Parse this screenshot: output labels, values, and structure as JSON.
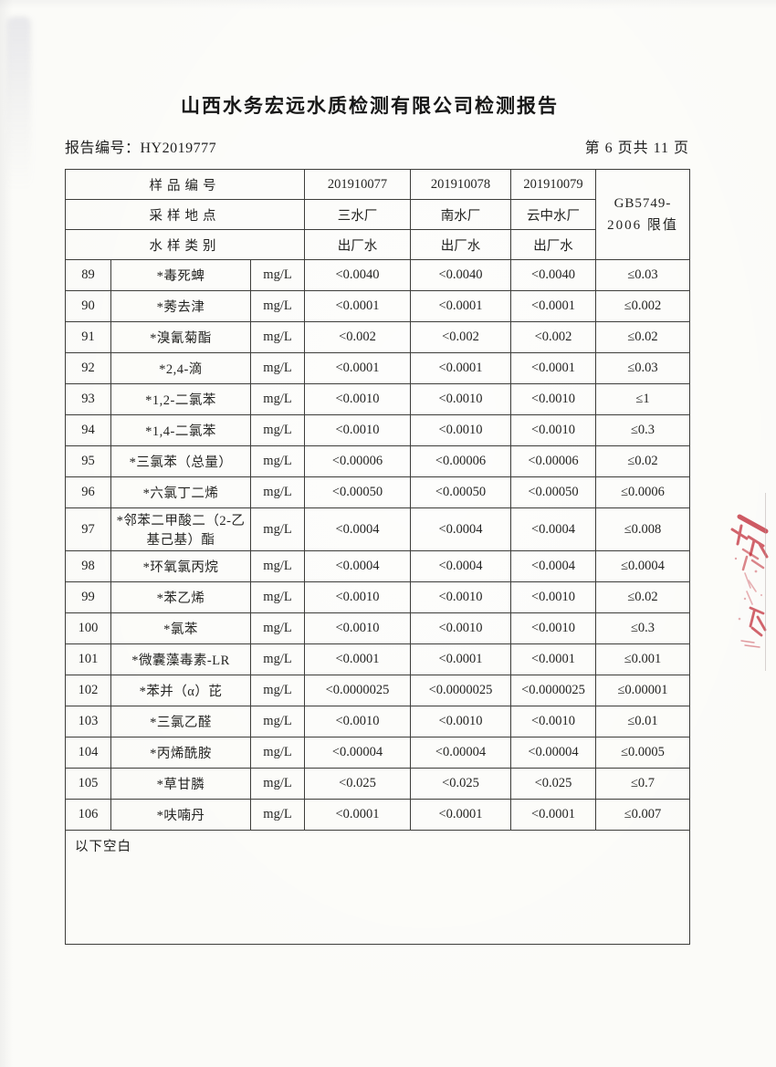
{
  "page": {
    "title": "山西水务宏远水质检测有限公司检测报告",
    "report_no": "报告编号：HY2019777",
    "page_indicator": "第 6 页共 11 页"
  },
  "table": {
    "header": {
      "sample_id_label": "样品编号",
      "sample_ids": [
        "201910077",
        "201910078",
        "201910079"
      ],
      "location_label": "采样地点",
      "locations": [
        "三水厂",
        "南水厂",
        "云中水厂"
      ],
      "category_label": "水样类别",
      "categories": [
        "出厂水",
        "出厂水",
        "出厂水"
      ],
      "limit_line1": "GB5749-",
      "limit_line2": "2006 限值"
    },
    "rows": [
      {
        "no": "89",
        "name": "*毒死蜱",
        "unit": "mg/L",
        "values": [
          "<0.0040",
          "<0.0040",
          "<0.0040"
        ],
        "limit": "≤0.03"
      },
      {
        "no": "90",
        "name": "*莠去津",
        "unit": "mg/L",
        "values": [
          "<0.0001",
          "<0.0001",
          "<0.0001"
        ],
        "limit": "≤0.002"
      },
      {
        "no": "91",
        "name": "*溴氰菊酯",
        "unit": "mg/L",
        "values": [
          "<0.002",
          "<0.002",
          "<0.002"
        ],
        "limit": "≤0.02"
      },
      {
        "no": "92",
        "name": "*2,4-滴",
        "unit": "mg/L",
        "values": [
          "<0.0001",
          "<0.0001",
          "<0.0001"
        ],
        "limit": "≤0.03"
      },
      {
        "no": "93",
        "name": "*1,2-二氯苯",
        "unit": "mg/L",
        "values": [
          "<0.0010",
          "<0.0010",
          "<0.0010"
        ],
        "limit": "≤1"
      },
      {
        "no": "94",
        "name": "*1,4-二氯苯",
        "unit": "mg/L",
        "values": [
          "<0.0010",
          "<0.0010",
          "<0.0010"
        ],
        "limit": "≤0.3"
      },
      {
        "no": "95",
        "name": "*三氯苯（总量）",
        "unit": "mg/L",
        "values": [
          "<0.00006",
          "<0.00006",
          "<0.00006"
        ],
        "limit": "≤0.02"
      },
      {
        "no": "96",
        "name": "*六氯丁二烯",
        "unit": "mg/L",
        "values": [
          "<0.00050",
          "<0.00050",
          "<0.00050"
        ],
        "limit": "≤0.0006"
      },
      {
        "no": "97",
        "name": "*邻苯二甲酸二（2-乙基己基）酯",
        "unit": "mg/L",
        "values": [
          "<0.0004",
          "<0.0004",
          "<0.0004"
        ],
        "limit": "≤0.008"
      },
      {
        "no": "98",
        "name": "*环氧氯丙烷",
        "unit": "mg/L",
        "values": [
          "<0.0004",
          "<0.0004",
          "<0.0004"
        ],
        "limit": "≤0.0004"
      },
      {
        "no": "99",
        "name": "*苯乙烯",
        "unit": "mg/L",
        "values": [
          "<0.0010",
          "<0.0010",
          "<0.0010"
        ],
        "limit": "≤0.02"
      },
      {
        "no": "100",
        "name": "*氯苯",
        "unit": "mg/L",
        "values": [
          "<0.0010",
          "<0.0010",
          "<0.0010"
        ],
        "limit": "≤0.3"
      },
      {
        "no": "101",
        "name": "*微囊藻毒素-LR",
        "unit": "mg/L",
        "values": [
          "<0.0001",
          "<0.0001",
          "<0.0001"
        ],
        "limit": "≤0.001"
      },
      {
        "no": "102",
        "name": "*苯并（α）芘",
        "unit": "mg/L",
        "values": [
          "<0.0000025",
          "<0.0000025",
          "<0.0000025"
        ],
        "limit": "≤0.00001"
      },
      {
        "no": "103",
        "name": "*三氯乙醛",
        "unit": "mg/L",
        "values": [
          "<0.0010",
          "<0.0010",
          "<0.0010"
        ],
        "limit": "≤0.01"
      },
      {
        "no": "104",
        "name": "*丙烯酰胺",
        "unit": "mg/L",
        "values": [
          "<0.00004",
          "<0.00004",
          "<0.00004"
        ],
        "limit": "≤0.0005"
      },
      {
        "no": "105",
        "name": "*草甘膦",
        "unit": "mg/L",
        "values": [
          "<0.025",
          "<0.025",
          "<0.025"
        ],
        "limit": "≤0.7"
      },
      {
        "no": "106",
        "name": "*呋喃丹",
        "unit": "mg/L",
        "values": [
          "<0.0001",
          "<0.0001",
          "<0.0001"
        ],
        "limit": "≤0.007"
      }
    ],
    "footer_note": "以下空白"
  },
  "artifacts": {
    "stamp_color": "#bf2430"
  }
}
